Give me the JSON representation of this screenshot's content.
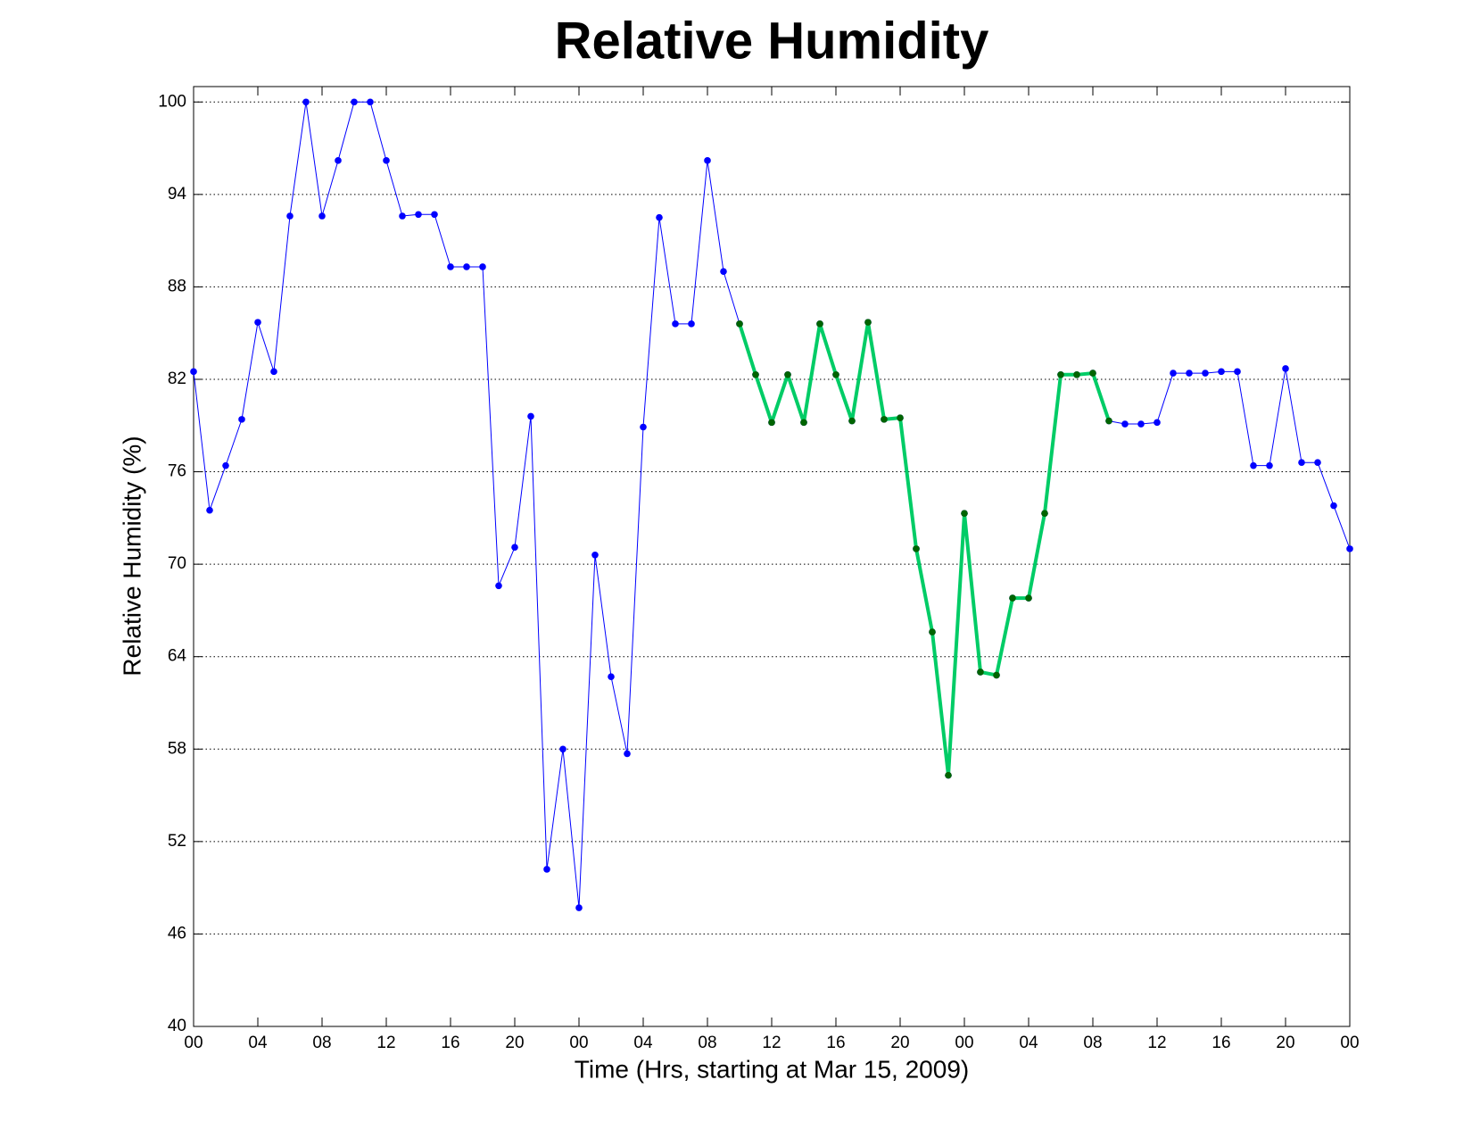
{
  "chart_data": {
    "type": "line",
    "title": "Relative Humidity",
    "x_label": "Time (Hrs, starting at Mar 15, 2009)",
    "y_label": "Relative Humidity (%)",
    "x": [
      0,
      1,
      2,
      3,
      4,
      5,
      6,
      7,
      8,
      9,
      10,
      11,
      12,
      13,
      14,
      15,
      16,
      17,
      18,
      19,
      20,
      21,
      22,
      23,
      24,
      25,
      26,
      27,
      28,
      29,
      30,
      31,
      32,
      33,
      34,
      35,
      36,
      37,
      38,
      39,
      40,
      41,
      42,
      43,
      44,
      45,
      46,
      47,
      48,
      49,
      50,
      51,
      52,
      53,
      54,
      55,
      56,
      57,
      58,
      59,
      60,
      61,
      62,
      63,
      64,
      65,
      66,
      67,
      68,
      69,
      70,
      71,
      72
    ],
    "series": [
      {
        "color": "#0000ff",
        "marker_color": "#0000ff",
        "line_width": 1,
        "values": [
          82.5,
          73.5,
          76.4,
          79.4,
          85.7,
          82.5,
          92.6,
          100,
          92.6,
          96.2,
          100,
          100,
          96.2,
          92.6,
          92.7,
          92.7,
          89.3,
          89.3,
          89.3,
          68.6,
          71.1,
          79.6,
          50.2,
          58.0,
          47.7,
          70.6,
          62.7,
          57.7,
          78.9,
          92.5,
          85.6,
          85.6,
          96.2,
          89.0,
          85.6,
          82.3,
          79.2,
          82.3,
          79.2,
          85.6,
          82.3,
          79.3,
          85.7,
          79.4,
          79.5,
          71.0,
          65.6,
          56.3,
          73.3,
          63.0,
          62.8,
          67.8,
          67.8,
          73.3,
          82.3,
          82.3,
          82.4,
          79.3,
          79.1,
          79.1,
          79.2,
          82.4,
          82.4,
          82.4,
          82.5,
          82.5,
          76.4,
          76.4,
          82.7,
          76.6,
          76.6,
          73.8,
          71.0
        ]
      },
      {
        "color": "#00cc66",
        "marker_color": "#006400",
        "line_width": 4,
        "values": [
          null,
          null,
          null,
          null,
          null,
          null,
          null,
          null,
          null,
          null,
          null,
          null,
          null,
          null,
          null,
          null,
          null,
          null,
          null,
          null,
          null,
          null,
          null,
          null,
          null,
          null,
          null,
          null,
          null,
          null,
          null,
          null,
          null,
          null,
          85.6,
          82.3,
          79.2,
          82.3,
          79.2,
          85.6,
          82.3,
          79.3,
          85.7,
          79.4,
          79.5,
          71.0,
          65.6,
          56.3,
          73.3,
          63.0,
          62.8,
          67.8,
          67.8,
          73.3,
          82.3,
          82.3,
          82.4,
          79.3,
          null,
          null,
          null,
          null,
          null,
          null,
          null,
          null,
          null,
          null,
          null,
          null,
          null,
          null,
          null
        ]
      }
    ],
    "xlim": [
      0,
      72
    ],
    "ylim": [
      40,
      101
    ],
    "xticks": [
      {
        "value": 0,
        "label": "00"
      },
      {
        "value": 4,
        "label": "04"
      },
      {
        "value": 8,
        "label": "08"
      },
      {
        "value": 12,
        "label": "12"
      },
      {
        "value": 16,
        "label": "16"
      },
      {
        "value": 20,
        "label": "20"
      },
      {
        "value": 24,
        "label": "00"
      },
      {
        "value": 28,
        "label": "04"
      },
      {
        "value": 32,
        "label": "08"
      },
      {
        "value": 36,
        "label": "12"
      },
      {
        "value": 40,
        "label": "16"
      },
      {
        "value": 44,
        "label": "20"
      },
      {
        "value": 48,
        "label": "00"
      },
      {
        "value": 52,
        "label": "04"
      },
      {
        "value": 56,
        "label": "08"
      },
      {
        "value": 60,
        "label": "12"
      },
      {
        "value": 64,
        "label": "16"
      },
      {
        "value": 68,
        "label": "20"
      },
      {
        "value": 72,
        "label": "00"
      }
    ],
    "yticks": [
      40,
      46,
      52,
      58,
      64,
      70,
      76,
      82,
      88,
      94,
      100
    ],
    "grid": true
  }
}
